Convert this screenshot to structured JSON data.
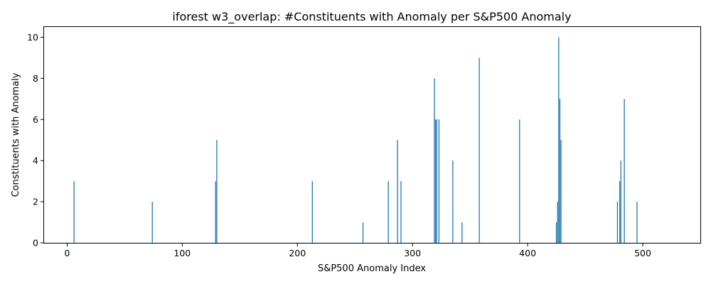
{
  "chart_data": {
    "type": "bar",
    "title": "iforest w3_overlap: #Constituents with Anomaly per S&P500 Anomaly",
    "xlabel": "S&P500 Anomaly Index",
    "ylabel": "Constituents with Anomaly",
    "xlim": [
      -20,
      550
    ],
    "ylim": [
      0,
      10.5
    ],
    "xticks": [
      0,
      100,
      200,
      300,
      400,
      500
    ],
    "yticks": [
      0,
      2,
      4,
      6,
      8,
      10
    ],
    "grid": false,
    "bar_color": "#1f77b4",
    "x": [
      6,
      74,
      129,
      130,
      213,
      257,
      279,
      287,
      290,
      319,
      320,
      321,
      323,
      335,
      343,
      358,
      393,
      425,
      426,
      427,
      428,
      429,
      478,
      480,
      481,
      484,
      495
    ],
    "values": [
      3,
      2,
      3,
      5,
      3,
      1,
      3,
      5,
      3,
      8,
      6,
      6,
      6,
      4,
      1,
      9,
      6,
      1,
      2,
      10,
      7,
      5,
      2,
      3,
      4,
      7,
      2
    ]
  }
}
